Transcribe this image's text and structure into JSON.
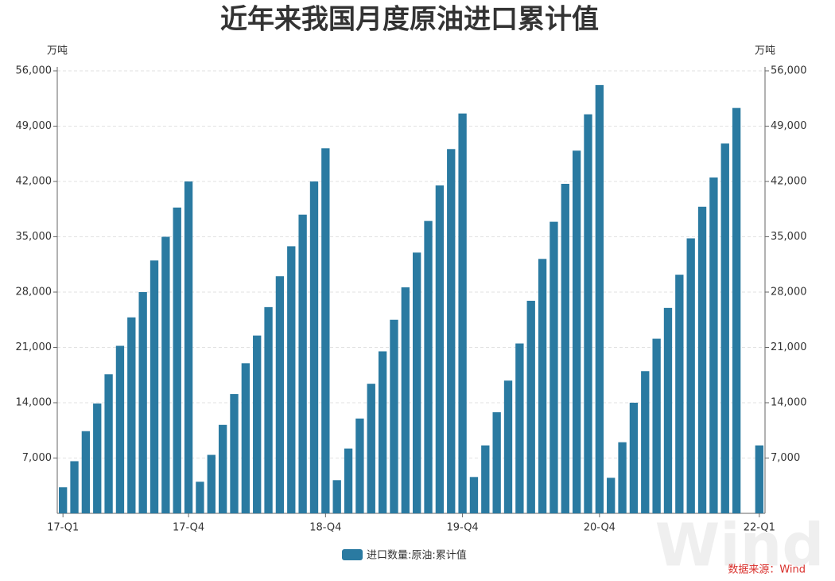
{
  "chart_data": {
    "type": "bar",
    "title": "近年来我国月度原油进口累计值",
    "y_unit": "万吨",
    "y2_unit": "万吨",
    "source": "数据来源：Wind",
    "watermark": "Wind",
    "categories": [
      "17-Q1",
      null,
      null,
      null,
      null,
      null,
      null,
      null,
      null,
      null,
      null,
      "17-Q4",
      null,
      null,
      null,
      null,
      null,
      null,
      null,
      null,
      null,
      null,
      null,
      "18-Q4",
      null,
      null,
      null,
      null,
      null,
      null,
      null,
      null,
      null,
      null,
      null,
      "19-Q4",
      null,
      null,
      null,
      null,
      null,
      null,
      null,
      null,
      null,
      null,
      null,
      "20-Q4",
      null,
      null,
      null,
      null,
      null,
      null,
      null,
      null,
      null,
      null,
      null,
      null,
      null,
      "22-Q1"
    ],
    "series": [
      {
        "name": "进口数量:原油:累计值",
        "color": "#2a7aa1",
        "values": [
          3300,
          6600,
          10400,
          13900,
          17600,
          21200,
          24800,
          28000,
          32000,
          35000,
          38700,
          42000,
          4000,
          7400,
          11200,
          15100,
          19000,
          22500,
          26100,
          30000,
          33800,
          37800,
          42000,
          46200,
          4200,
          8200,
          12000,
          16400,
          20500,
          24500,
          28600,
          33000,
          37000,
          41500,
          46100,
          50600,
          4600,
          8600,
          12800,
          16800,
          21500,
          26900,
          32200,
          36900,
          41700,
          45900,
          50500,
          54200,
          4500,
          9000,
          14000,
          18000,
          22100,
          26000,
          30200,
          34800,
          38800,
          42500,
          46800,
          51300,
          null,
          8600
        ]
      }
    ],
    "ylim": [
      0,
      56000
    ],
    "yticks": [
      {
        "value": 7000,
        "label": "7,000"
      },
      {
        "value": 14000,
        "label": "14,000"
      },
      {
        "value": 21000,
        "label": "21,000"
      },
      {
        "value": 28000,
        "label": "28,000"
      },
      {
        "value": 35000,
        "label": "35,000"
      },
      {
        "value": 42000,
        "label": "42,000"
      },
      {
        "value": 49000,
        "label": "49,000"
      },
      {
        "value": 56000,
        "label": "56,000"
      }
    ],
    "y2lim": [
      0,
      56000
    ],
    "y2ticks": [
      {
        "value": 7000,
        "label": "7,000"
      },
      {
        "value": 14000,
        "label": "14,000"
      },
      {
        "value": 21000,
        "label": "21,000"
      },
      {
        "value": 28000,
        "label": "28,000"
      },
      {
        "value": 35000,
        "label": "35,000"
      },
      {
        "value": 42000,
        "label": "42,000"
      },
      {
        "value": 49000,
        "label": "49,000"
      },
      {
        "value": 56000,
        "label": "56,000"
      }
    ],
    "grid": true
  }
}
